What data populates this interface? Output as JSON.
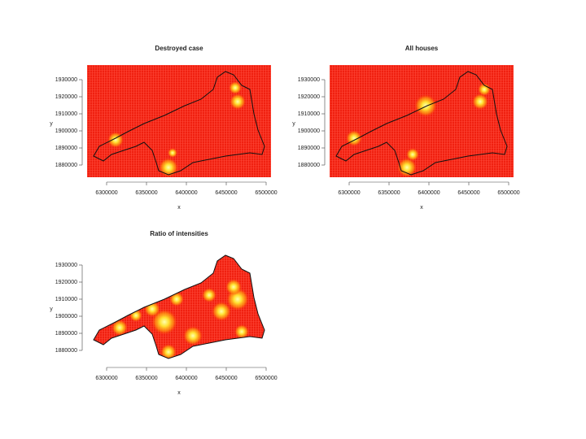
{
  "panels": [
    {
      "title": "Destroyed case",
      "xticks": [
        6300000,
        6350000,
        6400000,
        6450000,
        6500000
      ],
      "yticks": [
        1930000,
        1920000,
        1910000,
        1900000,
        1890000,
        1880000
      ],
      "xlabel": "x",
      "ylabel": "y"
    },
    {
      "title": "All houses",
      "xticks": [
        6300000,
        6350000,
        6400000,
        6450000,
        6500000
      ],
      "yticks": [
        1930000,
        1920000,
        1910000,
        1900000,
        1890000,
        1880000
      ],
      "xlabel": "x",
      "ylabel": "y"
    },
    {
      "title": "Ratio of intensities",
      "xticks": [
        6300000,
        6350000,
        6400000,
        6450000,
        6500000
      ],
      "yticks": [
        1930000,
        1920000,
        1910000,
        1900000,
        1890000,
        1880000
      ],
      "xlabel": "x",
      "ylabel": "y"
    }
  ]
}
